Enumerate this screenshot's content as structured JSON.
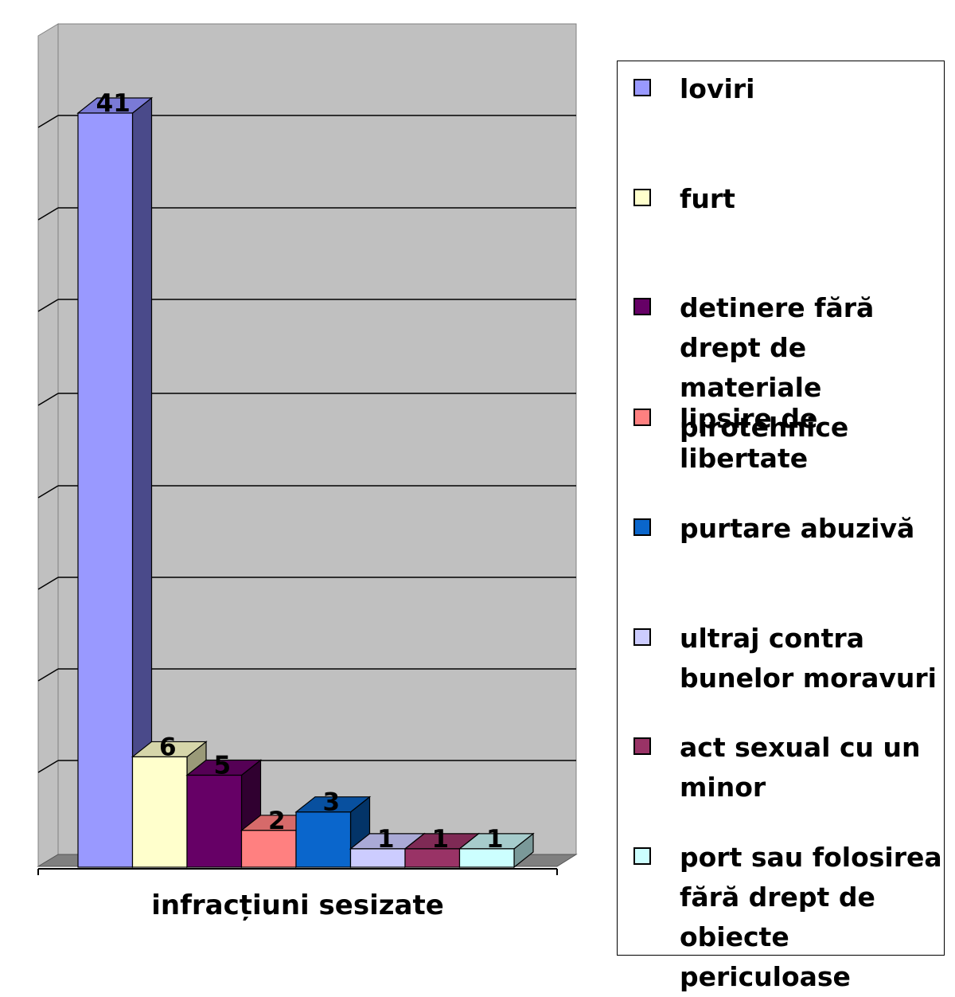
{
  "chart_data": {
    "type": "bar",
    "xlabel": "infracțiuni sesizate",
    "ylim": [
      0,
      41
    ],
    "grid": true,
    "legend_position": "right",
    "series": [
      {
        "name": "loviri",
        "value": 41,
        "color": "#9999ff",
        "side": "#4a4a8a",
        "top": "#7a7ad6"
      },
      {
        "name": "furt",
        "value": 6,
        "color": "#ffffcc",
        "side": "#9a9a78",
        "top": "#d6d6aa"
      },
      {
        "name": "detinere fără drept de materiale pirotehnice",
        "value": 5,
        "color": "#660066",
        "side": "#300030",
        "top": "#550055"
      },
      {
        "name": "lipsire de libertate",
        "value": 2,
        "color": "#ff8080",
        "side": "#8c4444",
        "top": "#d66a6a"
      },
      {
        "name": "purtare abuzivă",
        "value": 3,
        "color": "#0a66cc",
        "side": "#033468",
        "top": "#08509f"
      },
      {
        "name": "ultraj contra bunelor moravuri",
        "value": 1,
        "color": "#ccccff",
        "side": "#7a7a99",
        "top": "#aaaad6"
      },
      {
        "name": "act sexual cu un minor",
        "value": 1,
        "color": "#993366",
        "side": "#4d1a33",
        "top": "#7f2a55"
      },
      {
        "name": "port sau folosirea fără drept de obiecte periculoase",
        "value": 1,
        "color": "#ccffff",
        "side": "#7a9999",
        "top": "#a6cccc"
      }
    ]
  }
}
